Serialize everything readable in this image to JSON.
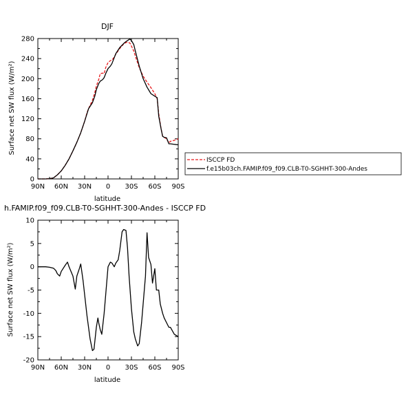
{
  "chart_data": [
    {
      "type": "line",
      "title": "DJF",
      "xlabel": "latitude",
      "ylabel": "Surface net SW flux (W/m²)",
      "xlim": [
        90,
        -90
      ],
      "ylim": [
        0,
        280
      ],
      "xticks": [
        90,
        60,
        30,
        0,
        -30,
        -60,
        -90
      ],
      "xtick_labels": [
        "90N",
        "60N",
        "30N",
        "0",
        "30S",
        "60S",
        "90S"
      ],
      "yticks": [
        0,
        40,
        80,
        120,
        160,
        200,
        240,
        280
      ],
      "ytick_labels": [
        "0",
        "40",
        "80",
        "120",
        "160",
        "200",
        "240",
        "280"
      ],
      "legend_position": "right",
      "series": [
        {
          "name": "ISCCP FD",
          "color": "#e8191c",
          "dashed": true,
          "points": [
            [
              90,
              0
            ],
            [
              85,
              0
            ],
            [
              80,
              0
            ],
            [
              75,
              0.5
            ],
            [
              70,
              2
            ],
            [
              65,
              8
            ],
            [
              60,
              16
            ],
            [
              55,
              27
            ],
            [
              50,
              40
            ],
            [
              45,
              56
            ],
            [
              40,
              73
            ],
            [
              35,
              92
            ],
            [
              30,
              115
            ],
            [
              27,
              132
            ],
            [
              25,
              140
            ],
            [
              20,
              157
            ],
            [
              17,
              172
            ],
            [
              15,
              185
            ],
            [
              12,
              198
            ],
            [
              10,
              210
            ],
            [
              7,
              211
            ],
            [
              5,
              210
            ],
            [
              3,
              222
            ],
            [
              0,
              232
            ],
            [
              -3,
              236
            ],
            [
              -5,
              237
            ],
            [
              -8,
              243
            ],
            [
              -10,
              249
            ],
            [
              -15,
              260
            ],
            [
              -20,
              269
            ],
            [
              -23,
              272
            ],
            [
              -25,
              273
            ],
            [
              -28,
              271
            ],
            [
              -30,
              265
            ],
            [
              -33,
              255
            ],
            [
              -35,
              245
            ],
            [
              -40,
              222
            ],
            [
              -45,
              205
            ],
            [
              -50,
              193
            ],
            [
              -55,
              182
            ],
            [
              -60,
              170
            ],
            [
              -63,
              160
            ],
            [
              -65,
              130
            ],
            [
              -68,
              100
            ],
            [
              -70,
              85
            ],
            [
              -72,
              83
            ],
            [
              -75,
              80
            ],
            [
              -78,
              72
            ],
            [
              -80,
              75
            ],
            [
              -85,
              77
            ],
            [
              -90,
              80
            ]
          ]
        },
        {
          "name": "f.e15b03ch.FAMIP.f09_f09.CLB-T0-SGHHT-300-Andes",
          "color": "#000000",
          "dashed": false,
          "points": [
            [
              90,
              0
            ],
            [
              85,
              0
            ],
            [
              80,
              0
            ],
            [
              75,
              0.5
            ],
            [
              70,
              2
            ],
            [
              65,
              8
            ],
            [
              60,
              16
            ],
            [
              55,
              27
            ],
            [
              50,
              40
            ],
            [
              45,
              56
            ],
            [
              40,
              73
            ],
            [
              35,
              92
            ],
            [
              30,
              115
            ],
            [
              27,
              130
            ],
            [
              25,
              140
            ],
            [
              20,
              152
            ],
            [
              17,
              165
            ],
            [
              15,
              178
            ],
            [
              12,
              190
            ],
            [
              10,
              195
            ],
            [
              7,
              198
            ],
            [
              5,
              202
            ],
            [
              3,
              210
            ],
            [
              0,
              220
            ],
            [
              -3,
              225
            ],
            [
              -5,
              230
            ],
            [
              -8,
              242
            ],
            [
              -10,
              250
            ],
            [
              -15,
              262
            ],
            [
              -20,
              270
            ],
            [
              -23,
              274
            ],
            [
              -25,
              276
            ],
            [
              -28,
              279
            ],
            [
              -30,
              276
            ],
            [
              -33,
              268
            ],
            [
              -35,
              255
            ],
            [
              -40,
              225
            ],
            [
              -45,
              200
            ],
            [
              -50,
              183
            ],
            [
              -55,
              170
            ],
            [
              -60,
              165
            ],
            [
              -63,
              162
            ],
            [
              -65,
              125
            ],
            [
              -68,
              100
            ],
            [
              -70,
              85
            ],
            [
              -72,
              83
            ],
            [
              -75,
              82
            ],
            [
              -78,
              70
            ],
            [
              -80,
              70
            ],
            [
              -85,
              69
            ],
            [
              -90,
              68
            ]
          ]
        }
      ]
    },
    {
      "type": "line",
      "title": "h.FAMIP.f09_f09.CLB-T0-SGHHT-300-Andes - ISCCP FD",
      "xlabel": "latitude",
      "ylabel": "Surface net SW flux (W/m²)",
      "xlim": [
        90,
        -90
      ],
      "ylim": [
        -20,
        10
      ],
      "xticks": [
        90,
        60,
        30,
        0,
        -30,
        -60,
        -90
      ],
      "xtick_labels": [
        "90N",
        "60N",
        "30N",
        "0",
        "30S",
        "60S",
        "90S"
      ],
      "yticks": [
        -20,
        -15,
        -10,
        -5,
        0,
        5,
        10
      ],
      "ytick_labels": [
        "-20",
        "-15",
        "-10",
        "-5",
        "0",
        "5",
        "10"
      ],
      "series": [
        {
          "color": "#000000",
          "dashed": false,
          "points": [
            [
              90,
              0
            ],
            [
              85,
              0
            ],
            [
              80,
              0
            ],
            [
              75,
              -0.1
            ],
            [
              70,
              -0.3
            ],
            [
              67,
              -0.8
            ],
            [
              65,
              -1.5
            ],
            [
              62,
              -2
            ],
            [
              60,
              -1
            ],
            [
              55,
              0.3
            ],
            [
              52,
              1
            ],
            [
              50,
              0
            ],
            [
              45,
              -2
            ],
            [
              42,
              -4.8
            ],
            [
              40,
              -2
            ],
            [
              37,
              -0.5
            ],
            [
              35,
              0.6
            ],
            [
              32,
              -3
            ],
            [
              30,
              -6
            ],
            [
              27,
              -10.5
            ],
            [
              25,
              -13
            ],
            [
              23,
              -15.5
            ],
            [
              20,
              -18
            ],
            [
              18,
              -17.7
            ],
            [
              15,
              -13
            ],
            [
              13,
              -11
            ],
            [
              12,
              -12
            ],
            [
              10,
              -13.5
            ],
            [
              8,
              -14.5
            ],
            [
              5,
              -10
            ],
            [
              3,
              -6
            ],
            [
              0,
              0
            ],
            [
              -3,
              1
            ],
            [
              -5,
              0.8
            ],
            [
              -8,
              0
            ],
            [
              -10,
              0.8
            ],
            [
              -13,
              1.5
            ],
            [
              -15,
              3.5
            ],
            [
              -18,
              7.5
            ],
            [
              -20,
              8
            ],
            [
              -23,
              7.8
            ],
            [
              -25,
              4
            ],
            [
              -27,
              -2
            ],
            [
              -30,
              -9
            ],
            [
              -33,
              -14
            ],
            [
              -35,
              -15.5
            ],
            [
              -38,
              -17
            ],
            [
              -40,
              -16.5
            ],
            [
              -43,
              -12
            ],
            [
              -45,
              -8
            ],
            [
              -48,
              -2
            ],
            [
              -50,
              7.3
            ],
            [
              -52,
              2
            ],
            [
              -55,
              0.5
            ],
            [
              -57,
              -3.5
            ],
            [
              -60,
              -0.4
            ],
            [
              -62,
              -5
            ],
            [
              -65,
              -5
            ],
            [
              -67,
              -8
            ],
            [
              -70,
              -10
            ],
            [
              -72,
              -11
            ],
            [
              -75,
              -12
            ],
            [
              -78,
              -13
            ],
            [
              -80,
              -13
            ],
            [
              -85,
              -14.5
            ],
            [
              -90,
              -15
            ]
          ]
        }
      ]
    }
  ]
}
